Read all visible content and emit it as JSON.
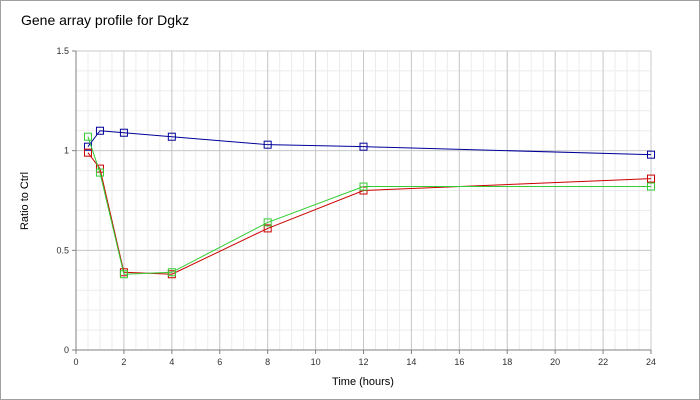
{
  "chart_data": {
    "type": "line",
    "title": "Gene array profile for Dgkz",
    "xlabel": "Time (hours)",
    "ylabel": "Ratio to Ctrl",
    "xlim": [
      0,
      24
    ],
    "ylim": [
      0,
      1.5
    ],
    "x_ticks": [
      "0",
      "2",
      "4",
      "6",
      "8",
      "10",
      "12",
      "14",
      "16",
      "18",
      "20",
      "22",
      "24"
    ],
    "y_ticks": [
      "0",
      "0.5",
      "1",
      "1.5"
    ],
    "grid": true,
    "legend": "none",
    "series": [
      {
        "color": "#000099",
        "marker": "square",
        "points": [
          [
            0.5,
            1.02
          ],
          [
            1,
            1.1
          ],
          [
            2,
            1.09
          ],
          [
            4,
            1.07
          ],
          [
            8,
            1.03
          ],
          [
            12,
            1.02
          ],
          [
            24,
            0.98
          ]
        ]
      },
      {
        "color": "#cc0000",
        "marker": "square",
        "points": [
          [
            0.5,
            0.99
          ],
          [
            1,
            0.91
          ],
          [
            2,
            0.39
          ],
          [
            4,
            0.38
          ],
          [
            8,
            0.61
          ],
          [
            12,
            0.8
          ],
          [
            24,
            0.86
          ]
        ]
      },
      {
        "color": "#33cc33",
        "marker": "square",
        "points": [
          [
            0.5,
            1.07
          ],
          [
            1,
            0.89
          ],
          [
            2,
            0.38
          ],
          [
            4,
            0.39
          ],
          [
            8,
            0.64
          ],
          [
            12,
            0.82
          ],
          [
            24,
            0.82
          ]
        ]
      }
    ]
  }
}
